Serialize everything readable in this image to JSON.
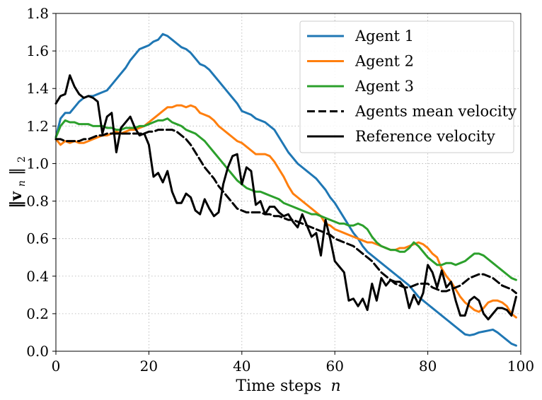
{
  "chart_data": {
    "type": "line",
    "title": "",
    "xlabel": "Time steps",
    "xlabel_var": "n",
    "ylabel_norm": "‖v",
    "ylabel_sub": "n",
    "ylabel_close": "‖",
    "ylabel_sub2": "2",
    "xlim": [
      0,
      100
    ],
    "ylim": [
      0,
      1.8
    ],
    "xticks": [
      0,
      20,
      40,
      60,
      80,
      100
    ],
    "xtick_labels": [
      "0",
      "20",
      "40",
      "60",
      "80",
      "100"
    ],
    "yticks": [
      0.0,
      0.2,
      0.4,
      0.6,
      0.8,
      1.0,
      1.2,
      1.4,
      1.6,
      1.8
    ],
    "ytick_labels": [
      "0.0",
      "0.2",
      "0.4",
      "0.6",
      "0.8",
      "1.0",
      "1.2",
      "1.4",
      "1.6",
      "1.8"
    ],
    "grid": true,
    "legend_position": "top-right",
    "series": [
      {
        "name": "Agent 1",
        "color": "#1f77b4",
        "dash": "solid",
        "x": [
          0,
          1,
          2,
          3,
          4,
          5,
          6,
          7,
          8,
          9,
          10,
          11,
          12,
          13,
          14,
          15,
          16,
          17,
          18,
          19,
          20,
          21,
          22,
          23,
          24,
          25,
          26,
          27,
          28,
          29,
          30,
          31,
          32,
          33,
          34,
          35,
          36,
          37,
          38,
          39,
          40,
          41,
          42,
          43,
          44,
          45,
          46,
          47,
          48,
          49,
          50,
          51,
          52,
          53,
          54,
          55,
          56,
          57,
          58,
          59,
          60,
          61,
          62,
          63,
          64,
          65,
          66,
          67,
          68,
          69,
          70,
          71,
          72,
          73,
          74,
          75,
          76,
          77,
          78,
          79,
          80,
          81,
          82,
          83,
          84,
          85,
          86,
          87,
          88,
          89,
          90,
          91,
          92,
          93,
          94,
          95,
          96,
          97,
          98,
          99
        ],
        "values": [
          1.14,
          1.24,
          1.27,
          1.27,
          1.3,
          1.33,
          1.35,
          1.36,
          1.36,
          1.37,
          1.38,
          1.39,
          1.42,
          1.45,
          1.48,
          1.51,
          1.55,
          1.58,
          1.61,
          1.62,
          1.63,
          1.65,
          1.66,
          1.69,
          1.68,
          1.66,
          1.64,
          1.62,
          1.61,
          1.59,
          1.56,
          1.53,
          1.52,
          1.5,
          1.47,
          1.44,
          1.41,
          1.38,
          1.35,
          1.32,
          1.28,
          1.27,
          1.26,
          1.24,
          1.23,
          1.22,
          1.2,
          1.18,
          1.14,
          1.1,
          1.06,
          1.03,
          1.0,
          0.98,
          0.96,
          0.94,
          0.92,
          0.89,
          0.86,
          0.82,
          0.79,
          0.75,
          0.71,
          0.67,
          0.63,
          0.6,
          0.56,
          0.53,
          0.51,
          0.49,
          0.47,
          0.45,
          0.43,
          0.41,
          0.39,
          0.37,
          0.35,
          0.32,
          0.29,
          0.27,
          0.25,
          0.23,
          0.21,
          0.19,
          0.17,
          0.15,
          0.13,
          0.11,
          0.09,
          0.085,
          0.09,
          0.1,
          0.105,
          0.11,
          0.115,
          0.1,
          0.08,
          0.06,
          0.04,
          0.03
        ]
      },
      {
        "name": "Agent 2",
        "color": "#ff7f0e",
        "dash": "solid",
        "x": [
          0,
          1,
          2,
          3,
          4,
          5,
          6,
          7,
          8,
          9,
          10,
          11,
          12,
          13,
          14,
          15,
          16,
          17,
          18,
          19,
          20,
          21,
          22,
          23,
          24,
          25,
          26,
          27,
          28,
          29,
          30,
          31,
          32,
          33,
          34,
          35,
          36,
          37,
          38,
          39,
          40,
          41,
          42,
          43,
          44,
          45,
          46,
          47,
          48,
          49,
          50,
          51,
          52,
          53,
          54,
          55,
          56,
          57,
          58,
          59,
          60,
          61,
          62,
          63,
          64,
          65,
          66,
          67,
          68,
          69,
          70,
          71,
          72,
          73,
          74,
          75,
          76,
          77,
          78,
          79,
          80,
          81,
          82,
          83,
          84,
          85,
          86,
          87,
          88,
          89,
          90,
          91,
          92,
          93,
          94,
          95,
          96,
          97,
          98,
          99
        ],
        "values": [
          1.13,
          1.1,
          1.12,
          1.11,
          1.12,
          1.11,
          1.11,
          1.12,
          1.13,
          1.14,
          1.15,
          1.15,
          1.16,
          1.17,
          1.16,
          1.17,
          1.18,
          1.18,
          1.19,
          1.2,
          1.22,
          1.24,
          1.26,
          1.28,
          1.3,
          1.3,
          1.31,
          1.31,
          1.3,
          1.31,
          1.3,
          1.27,
          1.26,
          1.25,
          1.23,
          1.2,
          1.18,
          1.16,
          1.14,
          1.12,
          1.11,
          1.09,
          1.07,
          1.05,
          1.05,
          1.05,
          1.04,
          1.01,
          0.97,
          0.93,
          0.88,
          0.84,
          0.82,
          0.8,
          0.78,
          0.76,
          0.74,
          0.72,
          0.68,
          0.67,
          0.65,
          0.64,
          0.63,
          0.62,
          0.61,
          0.6,
          0.59,
          0.58,
          0.58,
          0.57,
          0.56,
          0.55,
          0.54,
          0.54,
          0.55,
          0.55,
          0.56,
          0.57,
          0.58,
          0.57,
          0.55,
          0.52,
          0.5,
          0.44,
          0.4,
          0.37,
          0.33,
          0.29,
          0.26,
          0.24,
          0.22,
          0.21,
          0.23,
          0.26,
          0.27,
          0.27,
          0.26,
          0.24,
          0.2,
          0.18
        ]
      },
      {
        "name": "Agent 3",
        "color": "#2ca02c",
        "dash": "solid",
        "x": [
          0,
          1,
          2,
          3,
          4,
          5,
          6,
          7,
          8,
          9,
          10,
          11,
          12,
          13,
          14,
          15,
          16,
          17,
          18,
          19,
          20,
          21,
          22,
          23,
          24,
          25,
          26,
          27,
          28,
          29,
          30,
          31,
          32,
          33,
          34,
          35,
          36,
          37,
          38,
          39,
          40,
          41,
          42,
          43,
          44,
          45,
          46,
          47,
          48,
          49,
          50,
          51,
          52,
          53,
          54,
          55,
          56,
          57,
          58,
          59,
          60,
          61,
          62,
          63,
          64,
          65,
          66,
          67,
          68,
          69,
          70,
          71,
          72,
          73,
          74,
          75,
          76,
          77,
          78,
          79,
          80,
          81,
          82,
          83,
          84,
          85,
          86,
          87,
          88,
          89,
          90,
          91,
          92,
          93,
          94,
          95,
          96,
          97,
          98,
          99
        ],
        "values": [
          1.14,
          1.2,
          1.23,
          1.22,
          1.22,
          1.21,
          1.21,
          1.21,
          1.2,
          1.2,
          1.2,
          1.19,
          1.19,
          1.18,
          1.18,
          1.19,
          1.19,
          1.19,
          1.2,
          1.2,
          1.21,
          1.22,
          1.23,
          1.23,
          1.24,
          1.22,
          1.21,
          1.2,
          1.18,
          1.17,
          1.16,
          1.14,
          1.12,
          1.09,
          1.06,
          1.03,
          1.0,
          0.97,
          0.94,
          0.91,
          0.89,
          0.87,
          0.86,
          0.85,
          0.85,
          0.84,
          0.83,
          0.82,
          0.81,
          0.79,
          0.78,
          0.77,
          0.76,
          0.75,
          0.74,
          0.73,
          0.73,
          0.72,
          0.71,
          0.7,
          0.69,
          0.68,
          0.68,
          0.67,
          0.67,
          0.68,
          0.67,
          0.65,
          0.61,
          0.58,
          0.56,
          0.55,
          0.54,
          0.54,
          0.53,
          0.53,
          0.55,
          0.58,
          0.56,
          0.53,
          0.5,
          0.48,
          0.46,
          0.46,
          0.47,
          0.47,
          0.46,
          0.47,
          0.48,
          0.5,
          0.52,
          0.52,
          0.51,
          0.49,
          0.47,
          0.45,
          0.43,
          0.41,
          0.39,
          0.38
        ]
      },
      {
        "name": "Agents mean velocity",
        "color": "#000000",
        "dash": "dashed",
        "x": [
          0,
          1,
          2,
          3,
          4,
          5,
          6,
          7,
          8,
          9,
          10,
          11,
          12,
          13,
          14,
          15,
          16,
          17,
          18,
          19,
          20,
          21,
          22,
          23,
          24,
          25,
          26,
          27,
          28,
          29,
          30,
          31,
          32,
          33,
          34,
          35,
          36,
          37,
          38,
          39,
          40,
          41,
          42,
          43,
          44,
          45,
          46,
          47,
          48,
          49,
          50,
          51,
          52,
          53,
          54,
          55,
          56,
          57,
          58,
          59,
          60,
          61,
          62,
          63,
          64,
          65,
          66,
          67,
          68,
          69,
          70,
          71,
          72,
          73,
          74,
          75,
          76,
          77,
          78,
          79,
          80,
          81,
          82,
          83,
          84,
          85,
          86,
          87,
          88,
          89,
          90,
          91,
          92,
          93,
          94,
          95,
          96,
          97,
          98,
          99
        ],
        "values": [
          1.13,
          1.13,
          1.12,
          1.12,
          1.12,
          1.12,
          1.13,
          1.13,
          1.14,
          1.15,
          1.15,
          1.16,
          1.16,
          1.16,
          1.16,
          1.16,
          1.16,
          1.16,
          1.16,
          1.16,
          1.17,
          1.17,
          1.18,
          1.18,
          1.18,
          1.18,
          1.17,
          1.15,
          1.13,
          1.1,
          1.06,
          1.02,
          0.98,
          0.95,
          0.92,
          0.88,
          0.85,
          0.82,
          0.79,
          0.76,
          0.75,
          0.74,
          0.74,
          0.74,
          0.74,
          0.73,
          0.73,
          0.72,
          0.72,
          0.71,
          0.7,
          0.7,
          0.69,
          0.68,
          0.67,
          0.66,
          0.65,
          0.64,
          0.63,
          0.62,
          0.6,
          0.59,
          0.58,
          0.57,
          0.56,
          0.54,
          0.52,
          0.5,
          0.48,
          0.45,
          0.42,
          0.4,
          0.38,
          0.36,
          0.35,
          0.34,
          0.34,
          0.35,
          0.36,
          0.36,
          0.36,
          0.34,
          0.33,
          0.32,
          0.32,
          0.33,
          0.34,
          0.35,
          0.37,
          0.39,
          0.4,
          0.41,
          0.41,
          0.4,
          0.39,
          0.37,
          0.35,
          0.34,
          0.33,
          0.31
        ]
      },
      {
        "name": "Reference velocity",
        "color": "#000000",
        "dash": "solid",
        "x": [
          0,
          1,
          2,
          3,
          4,
          5,
          6,
          7,
          8,
          9,
          10,
          11,
          12,
          13,
          14,
          15,
          16,
          17,
          18,
          19,
          20,
          21,
          22,
          23,
          24,
          25,
          26,
          27,
          28,
          29,
          30,
          31,
          32,
          33,
          34,
          35,
          36,
          37,
          38,
          39,
          40,
          41,
          42,
          43,
          44,
          45,
          46,
          47,
          48,
          49,
          50,
          51,
          52,
          53,
          54,
          55,
          56,
          57,
          58,
          59,
          60,
          61,
          62,
          63,
          64,
          65,
          66,
          67,
          68,
          69,
          70,
          71,
          72,
          73,
          74,
          75,
          76,
          77,
          78,
          79,
          80,
          81,
          82,
          83,
          84,
          85,
          86,
          87,
          88,
          89,
          90,
          91,
          92,
          93,
          94,
          95,
          96,
          97,
          98,
          99
        ],
        "values": [
          1.32,
          1.36,
          1.37,
          1.47,
          1.41,
          1.37,
          1.35,
          1.36,
          1.35,
          1.33,
          1.16,
          1.25,
          1.27,
          1.06,
          1.19,
          1.22,
          1.25,
          1.19,
          1.15,
          1.16,
          1.1,
          0.93,
          0.95,
          0.9,
          0.96,
          0.85,
          0.79,
          0.79,
          0.84,
          0.82,
          0.75,
          0.73,
          0.81,
          0.76,
          0.72,
          0.74,
          0.89,
          0.98,
          1.04,
          1.05,
          0.89,
          0.98,
          0.96,
          0.78,
          0.8,
          0.73,
          0.77,
          0.77,
          0.74,
          0.72,
          0.73,
          0.69,
          0.66,
          0.73,
          0.67,
          0.61,
          0.63,
          0.51,
          0.7,
          0.6,
          0.48,
          0.45,
          0.42,
          0.27,
          0.28,
          0.24,
          0.28,
          0.22,
          0.36,
          0.27,
          0.39,
          0.35,
          0.38,
          0.37,
          0.37,
          0.34,
          0.23,
          0.3,
          0.25,
          0.31,
          0.46,
          0.42,
          0.34,
          0.43,
          0.34,
          0.37,
          0.27,
          0.19,
          0.19,
          0.27,
          0.29,
          0.27,
          0.2,
          0.17,
          0.2,
          0.23,
          0.23,
          0.22,
          0.19,
          0.29
        ]
      }
    ]
  }
}
